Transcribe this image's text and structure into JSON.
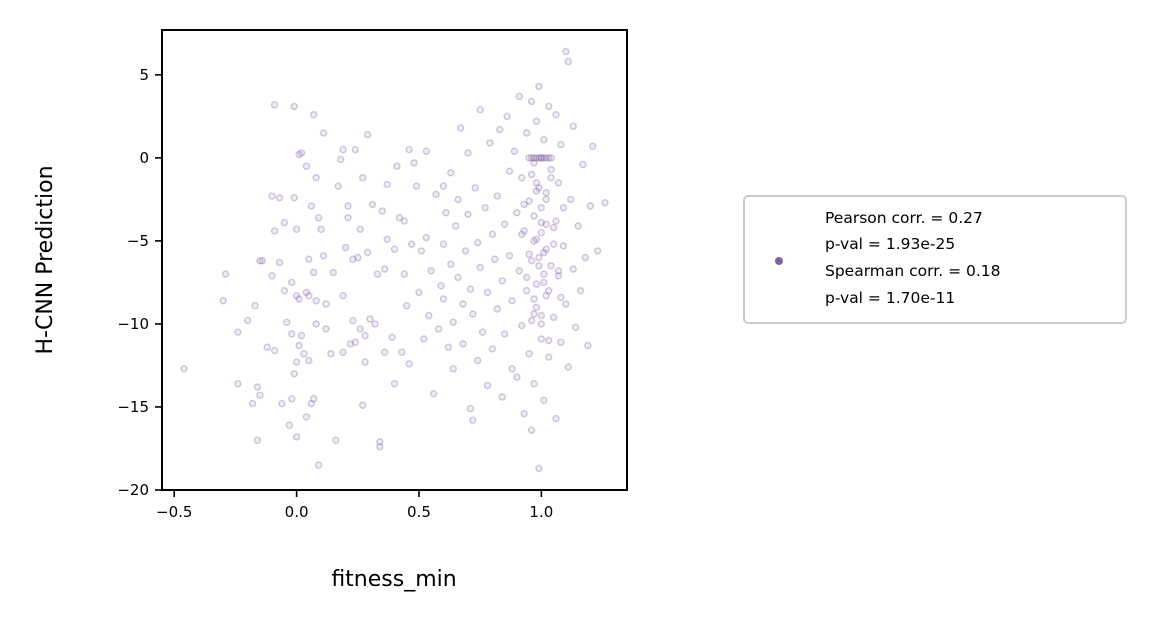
{
  "chart_data": {
    "type": "scatter",
    "title": "",
    "xlabel": "fitness_min",
    "ylabel": "H-CNN Prediction",
    "xlim": [
      -0.55,
      1.35
    ],
    "ylim": [
      -20,
      7.7
    ],
    "xticks": [
      -0.5,
      0.0,
      0.5,
      1.0
    ],
    "xtick_labels": [
      "−0.5",
      "0.0",
      "0.5",
      "1.0"
    ],
    "yticks": [
      5,
      0,
      -5,
      -10,
      -15,
      -20
    ],
    "ytick_labels": [
      "5",
      "0",
      "−5",
      "−10",
      "−15",
      "−20"
    ],
    "grid": false,
    "legend_position": "right, outside plot",
    "series_color": "#8064a2",
    "series": [
      {
        "name": "",
        "legend_lines": [
          "Pearson corr. = 0.27",
          "p-val = 1.93e-25",
          "Spearman corr. = 0.18",
          "p-val = 1.70e-11"
        ],
        "points": [
          [
            -0.46,
            -12.7
          ],
          [
            -0.3,
            -8.6
          ],
          [
            -0.29,
            -7.0
          ],
          [
            -0.24,
            -10.5
          ],
          [
            -0.24,
            -13.6
          ],
          [
            -0.2,
            -9.8
          ],
          [
            -0.18,
            -14.8
          ],
          [
            -0.17,
            -8.9
          ],
          [
            -0.16,
            -13.8
          ],
          [
            -0.16,
            -17.0
          ],
          [
            -0.15,
            -14.3
          ],
          [
            -0.15,
            -6.2
          ],
          [
            -0.14,
            -6.2
          ],
          [
            -0.12,
            -11.4
          ],
          [
            -0.1,
            -2.3
          ],
          [
            -0.1,
            -7.1
          ],
          [
            -0.09,
            -11.6
          ],
          [
            -0.09,
            -4.4
          ],
          [
            -0.09,
            3.2
          ],
          [
            -0.07,
            -2.4
          ],
          [
            -0.07,
            -6.3
          ],
          [
            -0.06,
            -14.8
          ],
          [
            -0.05,
            -8.0
          ],
          [
            -0.05,
            -3.9
          ],
          [
            -0.04,
            -9.9
          ],
          [
            -0.03,
            -16.1
          ],
          [
            -0.02,
            -10.6
          ],
          [
            -0.02,
            -7.5
          ],
          [
            -0.02,
            -14.5
          ],
          [
            -0.01,
            -13.0
          ],
          [
            -0.01,
            -2.4
          ],
          [
            -0.01,
            3.1
          ],
          [
            0.0,
            -8.3
          ],
          [
            0.0,
            -4.3
          ],
          [
            0.0,
            -12.3
          ],
          [
            0.0,
            -16.8
          ],
          [
            0.01,
            -8.5
          ],
          [
            0.01,
            0.2
          ],
          [
            0.01,
            -11.3
          ],
          [
            0.02,
            0.3
          ],
          [
            0.02,
            -10.7
          ],
          [
            0.03,
            -11.8
          ],
          [
            0.04,
            -8.1
          ],
          [
            0.04,
            -15.6
          ],
          [
            0.04,
            -0.5
          ],
          [
            0.05,
            -6.1
          ],
          [
            0.05,
            -12.2
          ],
          [
            0.05,
            -8.3
          ],
          [
            0.06,
            -14.8
          ],
          [
            0.06,
            -2.9
          ],
          [
            0.07,
            -14.5
          ],
          [
            0.07,
            2.6
          ],
          [
            0.07,
            -6.9
          ],
          [
            0.08,
            -8.6
          ],
          [
            0.08,
            -1.2
          ],
          [
            0.08,
            -10.0
          ],
          [
            0.09,
            -3.6
          ],
          [
            0.09,
            -18.5
          ],
          [
            0.1,
            -4.3
          ],
          [
            0.11,
            -5.9
          ],
          [
            0.11,
            1.5
          ],
          [
            0.12,
            -10.3
          ],
          [
            0.12,
            -8.8
          ],
          [
            0.14,
            -11.8
          ],
          [
            0.15,
            -6.9
          ],
          [
            0.16,
            -17.0
          ],
          [
            0.17,
            -1.7
          ],
          [
            0.18,
            -0.1
          ],
          [
            0.19,
            -11.7
          ],
          [
            0.19,
            -8.3
          ],
          [
            0.19,
            0.5
          ],
          [
            0.2,
            -5.4
          ],
          [
            0.21,
            -2.9
          ],
          [
            0.21,
            -3.6
          ],
          [
            0.22,
            -11.2
          ],
          [
            0.23,
            -6.1
          ],
          [
            0.23,
            -9.8
          ],
          [
            0.24,
            0.5
          ],
          [
            0.24,
            -11.1
          ],
          [
            0.25,
            -6.0
          ],
          [
            0.26,
            -10.3
          ],
          [
            0.26,
            -4.3
          ],
          [
            0.27,
            -1.2
          ],
          [
            0.27,
            -14.9
          ],
          [
            0.28,
            -10.7
          ],
          [
            0.28,
            -12.3
          ],
          [
            0.29,
            1.4
          ],
          [
            0.29,
            -5.7
          ],
          [
            0.3,
            -9.7
          ],
          [
            0.31,
            -2.8
          ],
          [
            0.32,
            -10.0
          ],
          [
            0.33,
            -7.0
          ],
          [
            0.34,
            -17.4
          ],
          [
            0.34,
            -17.1
          ],
          [
            0.35,
            -3.2
          ],
          [
            0.36,
            -11.7
          ],
          [
            0.36,
            -6.7
          ],
          [
            0.37,
            -1.6
          ],
          [
            0.37,
            -4.9
          ],
          [
            0.39,
            -10.8
          ],
          [
            0.4,
            -5.5
          ],
          [
            0.4,
            -13.6
          ],
          [
            0.41,
            -0.5
          ],
          [
            0.42,
            -3.6
          ],
          [
            0.43,
            -11.7
          ],
          [
            0.44,
            -7.0
          ],
          [
            0.44,
            -3.8
          ],
          [
            0.45,
            -8.9
          ],
          [
            0.46,
            -12.4
          ],
          [
            0.46,
            0.5
          ],
          [
            0.47,
            -5.2
          ],
          [
            0.48,
            -0.3
          ],
          [
            0.49,
            -1.7
          ],
          [
            0.5,
            -8.1
          ],
          [
            0.51,
            -5.6
          ],
          [
            0.52,
            -10.9
          ],
          [
            0.53,
            -4.8
          ],
          [
            0.53,
            0.4
          ],
          [
            0.54,
            -9.5
          ],
          [
            0.55,
            -6.8
          ],
          [
            0.56,
            -14.2
          ],
          [
            0.57,
            -2.2
          ],
          [
            0.58,
            -10.3
          ],
          [
            0.59,
            -7.7
          ],
          [
            0.6,
            -1.7
          ],
          [
            0.6,
            -8.5
          ],
          [
            0.6,
            -5.2
          ],
          [
            0.61,
            -3.3
          ],
          [
            0.62,
            -11.4
          ],
          [
            0.63,
            -6.4
          ],
          [
            0.63,
            -0.9
          ],
          [
            0.64,
            -9.9
          ],
          [
            0.64,
            -12.7
          ],
          [
            0.65,
            -4.1
          ],
          [
            0.66,
            -7.2
          ],
          [
            0.66,
            -2.5
          ],
          [
            0.67,
            1.8
          ],
          [
            0.68,
            -8.8
          ],
          [
            0.68,
            -11.2
          ],
          [
            0.69,
            -5.6
          ],
          [
            0.7,
            0.3
          ],
          [
            0.7,
            -3.4
          ],
          [
            0.71,
            -7.9
          ],
          [
            0.71,
            -15.1
          ],
          [
            0.72,
            -15.8
          ],
          [
            0.72,
            -9.4
          ],
          [
            0.73,
            -1.8
          ],
          [
            0.74,
            -5.1
          ],
          [
            0.74,
            -12.2
          ],
          [
            0.75,
            2.9
          ],
          [
            0.75,
            -6.6
          ],
          [
            0.76,
            -10.5
          ],
          [
            0.77,
            -3.0
          ],
          [
            0.78,
            -13.7
          ],
          [
            0.78,
            -8.1
          ],
          [
            0.79,
            0.9
          ],
          [
            0.8,
            -4.6
          ],
          [
            0.8,
            -11.5
          ],
          [
            0.81,
            -6.1
          ],
          [
            0.82,
            -2.3
          ],
          [
            0.82,
            -9.1
          ],
          [
            0.83,
            1.7
          ],
          [
            0.84,
            -7.4
          ],
          [
            0.84,
            -14.4
          ],
          [
            0.85,
            -4.0
          ],
          [
            0.85,
            -10.6
          ],
          [
            0.86,
            2.5
          ],
          [
            0.87,
            -0.8
          ],
          [
            0.87,
            -5.9
          ],
          [
            0.88,
            -12.7
          ],
          [
            0.88,
            -8.6
          ],
          [
            0.89,
            0.4
          ],
          [
            0.9,
            -3.3
          ],
          [
            0.9,
            -13.2
          ],
          [
            0.91,
            3.7
          ],
          [
            0.91,
            -6.8
          ],
          [
            0.92,
            -10.1
          ],
          [
            0.92,
            -1.2
          ],
          [
            0.93,
            -15.4
          ],
          [
            0.93,
            -4.4
          ],
          [
            0.94,
            1.5
          ],
          [
            0.94,
            -8.0
          ],
          [
            0.95,
            -11.8
          ],
          [
            0.95,
            -2.6
          ],
          [
            0.96,
            3.4
          ],
          [
            0.96,
            -6.2
          ],
          [
            0.96,
            -16.4
          ],
          [
            0.97,
            -0.3
          ],
          [
            0.97,
            -9.4
          ],
          [
            0.97,
            -13.6
          ],
          [
            0.98,
            2.2
          ],
          [
            0.98,
            -4.9
          ],
          [
            0.98,
            -7.6
          ],
          [
            0.99,
            -18.7
          ],
          [
            0.99,
            -1.8
          ],
          [
            0.99,
            4.3
          ],
          [
            1.0,
            -10.9
          ],
          [
            1.0,
            -3.9
          ],
          [
            1.0,
            0.0
          ],
          [
            1.01,
            -5.7
          ],
          [
            1.01,
            -14.6
          ],
          [
            1.01,
            1.1
          ],
          [
            1.02,
            -8.3
          ],
          [
            1.02,
            -2.1
          ],
          [
            1.03,
            -12.0
          ],
          [
            1.03,
            3.1
          ],
          [
            1.04,
            -6.5
          ],
          [
            1.04,
            -0.7
          ],
          [
            1.05,
            -9.6
          ],
          [
            1.05,
            -4.2
          ],
          [
            1.06,
            2.6
          ],
          [
            1.06,
            -15.7
          ],
          [
            1.07,
            -7.1
          ],
          [
            1.07,
            -1.5
          ],
          [
            1.08,
            -11.1
          ],
          [
            1.08,
            0.8
          ],
          [
            1.09,
            -5.3
          ],
          [
            1.09,
            -3.0
          ],
          [
            1.1,
            -8.8
          ],
          [
            1.1,
            6.4
          ],
          [
            1.11,
            5.8
          ],
          [
            1.11,
            -12.6
          ],
          [
            1.12,
            -2.5
          ],
          [
            1.13,
            -6.7
          ],
          [
            1.13,
            1.9
          ],
          [
            1.14,
            -10.2
          ],
          [
            1.15,
            -4.1
          ],
          [
            1.16,
            -8.0
          ],
          [
            1.17,
            -0.4
          ],
          [
            1.18,
            -6.0
          ],
          [
            1.19,
            -11.3
          ],
          [
            1.2,
            -2.9
          ],
          [
            1.21,
            0.7
          ],
          [
            1.23,
            -5.6
          ],
          [
            1.26,
            -2.7
          ],
          [
            0.95,
            0.0
          ],
          [
            0.96,
            0.0
          ],
          [
            0.97,
            0.0
          ],
          [
            0.98,
            0.0
          ],
          [
            0.99,
            0.0
          ],
          [
            1.0,
            0.0
          ],
          [
            1.01,
            0.0
          ],
          [
            1.02,
            0.0
          ],
          [
            1.03,
            0.0
          ],
          [
            1.04,
            0.0
          ],
          [
            0.96,
            -1.0
          ],
          [
            0.98,
            -2.0
          ],
          [
            1.0,
            -3.0
          ],
          [
            1.02,
            -4.0
          ],
          [
            0.97,
            -5.0
          ],
          [
            0.99,
            -6.0
          ],
          [
            1.01,
            -7.0
          ],
          [
            1.03,
            -8.0
          ],
          [
            0.98,
            -9.0
          ],
          [
            1.0,
            -10.0
          ],
          [
            0.97,
            -3.5
          ],
          [
            1.0,
            -4.5
          ],
          [
            1.02,
            -5.5
          ],
          [
            0.99,
            -6.5
          ],
          [
            1.01,
            -7.5
          ],
          [
            0.98,
            -1.5
          ],
          [
            1.02,
            -2.5
          ],
          [
            0.97,
            -8.5
          ],
          [
            1.0,
            -9.5
          ],
          [
            1.03,
            -11.0
          ],
          [
            0.95,
            -5.8
          ],
          [
            1.05,
            -5.2
          ],
          [
            0.94,
            -7.2
          ],
          [
            1.06,
            -3.8
          ],
          [
            0.96,
            -9.8
          ],
          [
            1.04,
            -1.2
          ],
          [
            0.93,
            -2.8
          ],
          [
            1.07,
            -6.8
          ],
          [
            0.92,
            -4.6
          ],
          [
            1.08,
            -8.4
          ]
        ]
      }
    ]
  }
}
